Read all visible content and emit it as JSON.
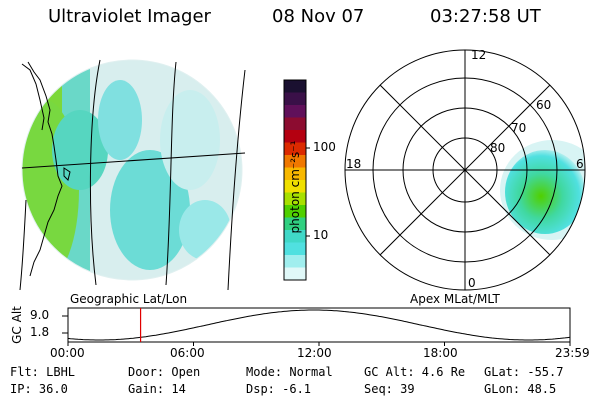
{
  "header": {
    "title": "Ultraviolet Imager",
    "date": "08 Nov 07",
    "time": "03:27:58 UT"
  },
  "left_panel": {
    "caption": "Geographic Lat/Lon"
  },
  "right_panel": {
    "caption": "Apex MLat/MLT",
    "mlt_labels": {
      "top": "12",
      "left": "18",
      "right": "6",
      "bottom": "0"
    },
    "lat_labels": [
      "60",
      "70",
      "80"
    ]
  },
  "colorbar": {
    "unit_label": "photon cm⁻²s⁻¹",
    "ticks": [
      "100",
      "10"
    ],
    "colors": [
      "#1a1030",
      "#3a1048",
      "#60105a",
      "#8c0c30",
      "#b40010",
      "#dc2a00",
      "#f07800",
      "#f8b800",
      "#f0e000",
      "#a8e000",
      "#50d000",
      "#30d080",
      "#40d8c8",
      "#50e0e0",
      "#a0eeee",
      "#e0f8f8"
    ]
  },
  "altitude_plot": {
    "axis_label": "GC Alt",
    "y_ticks": [
      "9.0",
      "1.8"
    ],
    "x_ticks": [
      "00:00",
      "06:00",
      "12:00",
      "18:00",
      "23:59"
    ],
    "marker_time_hours": 3.47,
    "marker_color": "#e00000"
  },
  "info": {
    "flt": "Flt: LBHL",
    "ip": "IP: 36.0",
    "door": "Door: Open",
    "gain": "Gain: 14",
    "mode": "Mode: Normal",
    "dsp": "Dsp:   -6.1",
    "gcalt": "GC Alt: 4.6 Re",
    "seq": "Seq: 39",
    "glat": "GLat:  -55.7",
    "glon": "GLon:  48.5"
  }
}
